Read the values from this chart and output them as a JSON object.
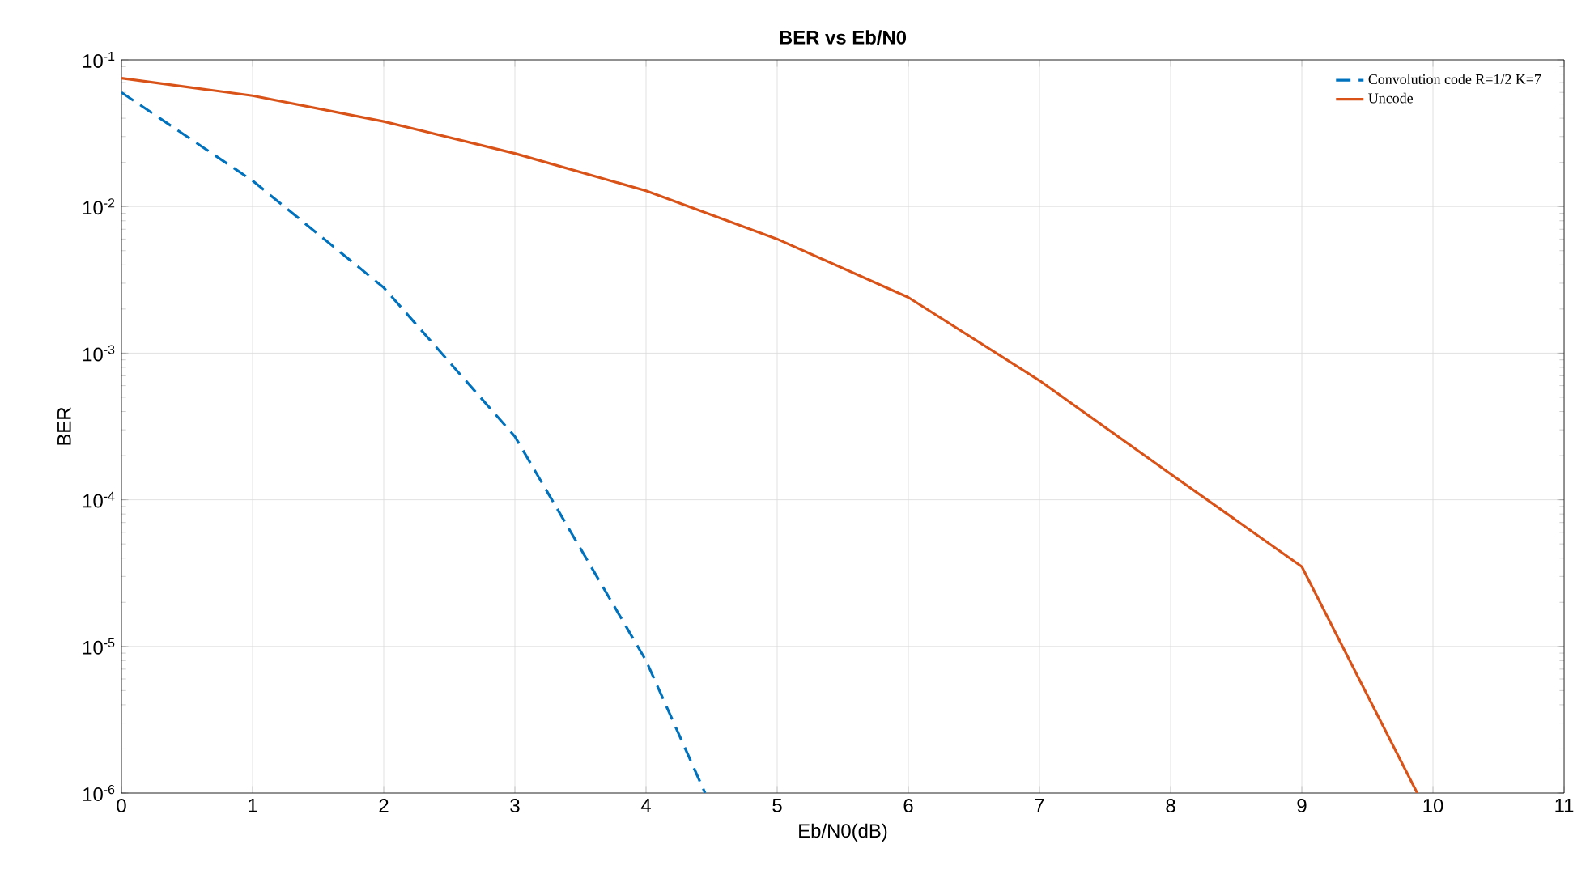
{
  "chart_data": {
    "type": "line",
    "title": "BER vs Eb/N0",
    "xlabel": "Eb/N0(dB)",
    "ylabel": "BER",
    "series": [
      {
        "name": "Convolution code R=1/2 K=7",
        "color": "#0072bd",
        "line_style": "dashed",
        "x": [
          0,
          1,
          2,
          3,
          4,
          4.45
        ],
        "values": [
          0.06,
          0.015,
          0.0028,
          0.00027,
          8e-06,
          1e-06
        ]
      },
      {
        "name": "Uncode",
        "color": "#d95319",
        "line_style": "solid",
        "x": [
          0,
          1,
          2,
          3,
          4,
          5,
          6,
          7,
          8,
          9,
          9.88
        ],
        "values": [
          0.075,
          0.057,
          0.038,
          0.023,
          0.0128,
          0.006,
          0.0024,
          0.00065,
          0.00015,
          3.5e-05,
          1e-06
        ]
      }
    ],
    "log": "y",
    "xlim": [
      0,
      11
    ],
    "ylim": [
      1e-06,
      0.1
    ],
    "xticks": [
      0,
      1,
      2,
      3,
      4,
      5,
      6,
      7,
      8,
      9,
      10,
      11
    ],
    "yticks": [
      {
        "value": 1e-06,
        "label": "10$^{-6}$"
      },
      {
        "value": 1e-05,
        "label": "10$^{-5}$"
      },
      {
        "value": 0.0001,
        "label": "10$^{-4}$"
      },
      {
        "value": 0.001,
        "label": "10$^{-3}$"
      },
      {
        "value": 0.01,
        "label": "10$^{-2}$"
      },
      {
        "value": 0.1,
        "label": "10$^{-1}$"
      }
    ],
    "grid": true,
    "legend": "top right",
    "marker": "none"
  }
}
